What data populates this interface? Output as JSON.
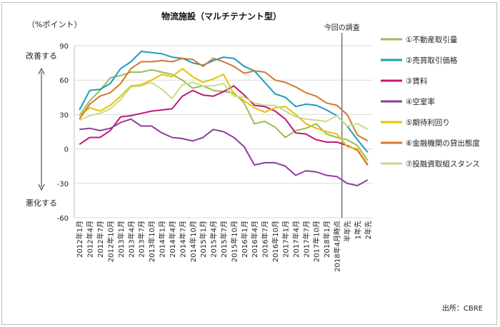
{
  "chart_data": {
    "type": "line",
    "title": "物流施設（マルチテナント型）",
    "unit_label": "（%ポイント）",
    "improve_label": "改善する",
    "worsen_label": "悪化する",
    "current_survey_label": "今回の調査",
    "source": "出所：CBRE",
    "ylim": [
      -60,
      90
    ],
    "yticks": [
      90,
      60,
      30,
      0,
      -30,
      -60
    ],
    "categories": [
      "2012年1月",
      "2012年4月",
      "2012年7月",
      "2012年10月",
      "2013年1月",
      "2013年4月",
      "2013年7月",
      "2013年10月",
      "2014年1月",
      "2014年4月",
      "2014年7月",
      "2014年10月",
      "2015年1月",
      "2015年4月",
      "2015年7月",
      "2015年10月",
      "2016年1月",
      "2016年4月",
      "2016年7月",
      "2016年10月",
      "2017年1月",
      "2017年4月",
      "2017年7月",
      "2017年10月",
      "2018年1月",
      "2018年4月時点",
      "半年先",
      "1年先",
      "2年先"
    ],
    "x_label_indices": [
      0,
      1,
      2,
      3,
      4,
      5,
      6,
      7,
      8,
      9,
      10,
      11,
      12,
      13,
      14,
      15,
      16,
      17,
      18,
      19,
      20,
      21,
      22,
      23,
      24,
      25,
      26,
      27,
      28
    ],
    "current_survey_index": 25,
    "series": [
      {
        "name": "①不動産取引量",
        "color": "#9bbb59",
        "values": [
          29,
          42,
          51,
          62,
          64,
          67,
          67,
          69,
          67,
          65,
          60,
          53,
          55,
          51,
          50,
          49,
          40,
          22,
          24,
          19,
          10,
          16,
          18,
          22,
          13,
          10,
          8,
          3,
          -10
        ]
      },
      {
        "name": "②売買取引価格",
        "color": "#1f9bc0",
        "values": [
          34,
          51,
          52,
          57,
          70,
          76,
          85,
          84,
          83,
          80,
          79,
          75,
          73,
          77,
          80,
          79,
          72,
          68,
          58,
          48,
          45,
          37,
          39,
          38,
          34,
          29,
          20,
          8,
          -3
        ]
      },
      {
        "name": "③賃料",
        "color": "#c0187a",
        "values": [
          4,
          10,
          10,
          16,
          28,
          29,
          31,
          33,
          34,
          35,
          46,
          51,
          47,
          46,
          50,
          55,
          47,
          38,
          37,
          33,
          26,
          14,
          13,
          8,
          6,
          6,
          3,
          -1,
          -14
        ]
      },
      {
        "name": "④空室率",
        "color": "#8e3d9e",
        "values": [
          17,
          18,
          16,
          18,
          23,
          26,
          20,
          20,
          14,
          10,
          9,
          7,
          10,
          17,
          15,
          10,
          2,
          -14,
          -12,
          -12,
          -15,
          -23,
          -19,
          -20,
          -23,
          -24,
          -30,
          -32,
          -27
        ]
      },
      {
        "name": "⑤期待利回り",
        "color": "#e6c200",
        "values": [
          29,
          36,
          33,
          38,
          46,
          55,
          56,
          60,
          65,
          63,
          70,
          63,
          58,
          61,
          65,
          48,
          42,
          36,
          32,
          36,
          37,
          30,
          22,
          18,
          15,
          13,
          2,
          0,
          -13
        ]
      },
      {
        "name": "⑥金融機関の貸出態度",
        "color": "#d4782a",
        "values": [
          26,
          39,
          46,
          49,
          57,
          70,
          76,
          76,
          77,
          76,
          79,
          78,
          72,
          79,
          76,
          72,
          66,
          68,
          67,
          60,
          58,
          54,
          49,
          46,
          40,
          38,
          30,
          12,
          7
        ]
      },
      {
        "name": "⑦投融資取組スタンス",
        "color": "#c4dd8c",
        "values": [
          25,
          29,
          31,
          35,
          43,
          54,
          55,
          58,
          52,
          44,
          56,
          58,
          55,
          55,
          57,
          46,
          45,
          40,
          38,
          38,
          33,
          28,
          26,
          25,
          24,
          29,
          20,
          22,
          17
        ]
      }
    ]
  }
}
